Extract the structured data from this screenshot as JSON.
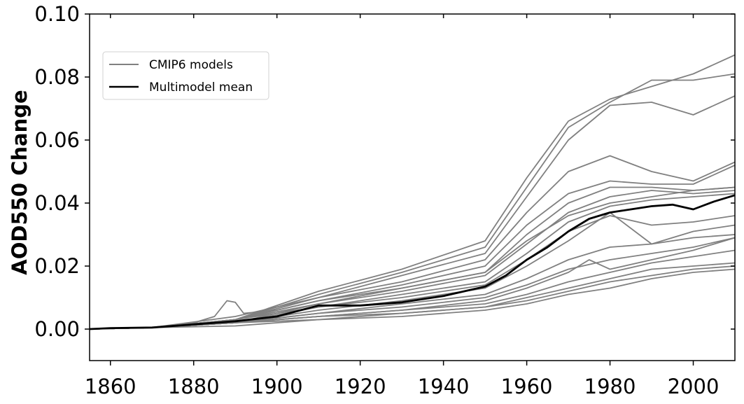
{
  "chart_data": {
    "type": "line",
    "title": "",
    "xlabel": "",
    "ylabel": "AOD550 Change",
    "xlim": [
      1855,
      2010
    ],
    "ylim": [
      -0.01,
      0.1
    ],
    "xticks": [
      1860,
      1880,
      1900,
      1920,
      1940,
      1960,
      1980,
      2000
    ],
    "xtick_labels": [
      "1860",
      "1880",
      "1900",
      "1920",
      "1940",
      "1960",
      "1980",
      "2000"
    ],
    "yticks": [
      0.0,
      0.02,
      0.04,
      0.06,
      0.08,
      0.1
    ],
    "ytick_labels": [
      "0.00",
      "0.02",
      "0.04",
      "0.06",
      "0.08",
      "0.10"
    ],
    "grid": false,
    "legend": {
      "location": "upper-left",
      "entries": [
        {
          "label": "CMIP6 models",
          "color": "#808080"
        },
        {
          "label": "Multimodel mean",
          "color": "#000000"
        }
      ]
    },
    "series": [
      {
        "group": "CMIP6 models",
        "color": "#808080",
        "x": [
          1855,
          1870,
          1890,
          1910,
          1930,
          1950,
          1960,
          1970,
          1980,
          1990,
          2000,
          2010
        ],
        "y": [
          0,
          0.0005,
          0.003,
          0.012,
          0.019,
          0.028,
          0.048,
          0.066,
          0.073,
          0.077,
          0.081,
          0.087
        ]
      },
      {
        "group": "CMIP6 models",
        "color": "#808080",
        "x": [
          1855,
          1870,
          1890,
          1910,
          1930,
          1950,
          1960,
          1970,
          1980,
          1990,
          2000,
          2010
        ],
        "y": [
          0,
          0.0005,
          0.003,
          0.011,
          0.018,
          0.026,
          0.045,
          0.064,
          0.072,
          0.079,
          0.079,
          0.081
        ]
      },
      {
        "group": "CMIP6 models",
        "color": "#808080",
        "x": [
          1855,
          1870,
          1890,
          1910,
          1930,
          1950,
          1960,
          1970,
          1980,
          1990,
          2000,
          2010
        ],
        "y": [
          0,
          0.0005,
          0.004,
          0.01,
          0.017,
          0.024,
          0.042,
          0.06,
          0.071,
          0.072,
          0.068,
          0.074
        ]
      },
      {
        "group": "CMIP6 models",
        "color": "#808080",
        "x": [
          1855,
          1870,
          1890,
          1910,
          1930,
          1950,
          1960,
          1970,
          1980,
          1990,
          2000,
          2010
        ],
        "y": [
          0,
          0.0005,
          0.003,
          0.01,
          0.015,
          0.022,
          0.037,
          0.05,
          0.055,
          0.05,
          0.047,
          0.053
        ]
      },
      {
        "group": "CMIP6 models",
        "color": "#808080",
        "x": [
          1855,
          1870,
          1890,
          1910,
          1930,
          1950,
          1960,
          1970,
          1980,
          1990,
          2000,
          2010
        ],
        "y": [
          0,
          0.0005,
          0.003,
          0.009,
          0.014,
          0.02,
          0.033,
          0.043,
          0.047,
          0.046,
          0.046,
          0.052
        ]
      },
      {
        "group": "CMIP6 models",
        "color": "#808080",
        "x": [
          1855,
          1870,
          1890,
          1910,
          1930,
          1950,
          1960,
          1970,
          1980,
          1990,
          2000,
          2010
        ],
        "y": [
          0,
          0.0005,
          0.003,
          0.008,
          0.013,
          0.018,
          0.03,
          0.04,
          0.045,
          0.045,
          0.044,
          0.045
        ]
      },
      {
        "group": "CMIP6 models",
        "color": "#808080",
        "x": [
          1855,
          1870,
          1890,
          1910,
          1930,
          1950,
          1960,
          1970,
          1980,
          1990,
          2000,
          2010
        ],
        "y": [
          0,
          0.0005,
          0.002,
          0.008,
          0.012,
          0.017,
          0.027,
          0.037,
          0.042,
          0.044,
          0.043,
          0.044
        ]
      },
      {
        "group": "CMIP6 models",
        "color": "#808080",
        "x": [
          1855,
          1870,
          1890,
          1910,
          1930,
          1950,
          1960,
          1970,
          1980,
          1990,
          2000,
          2010
        ],
        "y": [
          0,
          0.0005,
          0.003,
          0.007,
          0.011,
          0.015,
          0.024,
          0.034,
          0.039,
          0.041,
          0.042,
          0.043
        ]
      },
      {
        "group": "CMIP6 models",
        "color": "#808080",
        "x": [
          1855,
          1870,
          1890,
          1910,
          1930,
          1950,
          1960,
          1970,
          1980,
          1990,
          2000,
          2010
        ],
        "y": [
          0,
          0.0005,
          0.002,
          0.007,
          0.01,
          0.014,
          0.022,
          0.031,
          0.036,
          0.033,
          0.034,
          0.036
        ]
      },
      {
        "group": "CMIP6 models",
        "color": "#808080",
        "x": [
          1855,
          1870,
          1890,
          1910,
          1930,
          1950,
          1960,
          1970,
          1980,
          1990,
          2000,
          2010
        ],
        "y": [
          0,
          0.0005,
          0.002,
          0.006,
          0.009,
          0.013,
          0.02,
          0.028,
          0.037,
          0.027,
          0.031,
          0.033
        ]
      },
      {
        "group": "CMIP6 models",
        "color": "#808080",
        "x": [
          1855,
          1870,
          1890,
          1910,
          1930,
          1950,
          1960,
          1970,
          1980,
          1990,
          2000,
          2010
        ],
        "y": [
          0,
          0.0005,
          0.002,
          0.005,
          0.008,
          0.011,
          0.016,
          0.022,
          0.026,
          0.027,
          0.029,
          0.03
        ]
      },
      {
        "group": "CMIP6 models",
        "color": "#808080",
        "x": [
          1855,
          1870,
          1890,
          1910,
          1930,
          1950,
          1960,
          1970,
          1980,
          1990,
          2000,
          2010
        ],
        "y": [
          0,
          0.0005,
          0.002,
          0.005,
          0.007,
          0.01,
          0.014,
          0.019,
          0.022,
          0.024,
          0.026,
          0.029
        ]
      },
      {
        "group": "CMIP6 models",
        "color": "#808080",
        "x": [
          1855,
          1870,
          1890,
          1910,
          1930,
          1950,
          1960,
          1970,
          1980,
          1990,
          2000,
          2010
        ],
        "y": [
          0,
          0.0005,
          0.002,
          0.004,
          0.006,
          0.008,
          0.011,
          0.015,
          0.018,
          0.021,
          0.023,
          0.025
        ]
      },
      {
        "group": "CMIP6 models",
        "color": "#808080",
        "x": [
          1855,
          1870,
          1890,
          1910,
          1930,
          1950,
          1960,
          1970,
          1980,
          1990,
          2000,
          2010
        ],
        "y": [
          0,
          0.0005,
          0.002,
          0.003,
          0.005,
          0.007,
          0.009,
          0.012,
          0.015,
          0.017,
          0.019,
          0.02
        ]
      },
      {
        "group": "CMIP6 models",
        "color": "#808080",
        "x": [
          1855,
          1870,
          1890,
          1910,
          1930,
          1950,
          1960,
          1970,
          1980,
          1990,
          2000,
          2010
        ],
        "y": [
          0,
          0.0005,
          0.001,
          0.003,
          0.004,
          0.006,
          0.008,
          0.011,
          0.013,
          0.016,
          0.018,
          0.019
        ]
      },
      {
        "group": "CMIP6 models",
        "color": "#808080",
        "x": [
          1855,
          1870,
          1890,
          1910,
          1930,
          1950,
          1960,
          1970,
          1980,
          1990,
          2000,
          2010
        ],
        "y": [
          0,
          0.0005,
          0.002,
          0.004,
          0.005,
          0.007,
          0.01,
          0.013,
          0.016,
          0.019,
          0.02,
          0.021
        ]
      },
      {
        "group": "CMIP6 models",
        "color": "#808080",
        "x": [
          1855,
          1870,
          1880,
          1885,
          1888,
          1890,
          1892,
          1900,
          1910,
          1930,
          1950,
          1960,
          1970,
          1980,
          1990,
          2000,
          2010
        ],
        "y": [
          0,
          0.0005,
          0.002,
          0.004,
          0.009,
          0.0085,
          0.005,
          0.006,
          0.009,
          0.013,
          0.018,
          0.028,
          0.036,
          0.04,
          0.042,
          0.044,
          0.045
        ]
      },
      {
        "group": "CMIP6 models",
        "color": "#808080",
        "x": [
          1855,
          1870,
          1890,
          1910,
          1930,
          1950,
          1960,
          1970,
          1975,
          1980,
          1990,
          2000,
          2010
        ],
        "y": [
          0,
          0.0005,
          0.002,
          0.004,
          0.006,
          0.009,
          0.013,
          0.018,
          0.022,
          0.019,
          0.022,
          0.025,
          0.029
        ]
      },
      {
        "name": "Multimodel mean",
        "group": "Multimodel mean",
        "color": "#000000",
        "x": [
          1855,
          1860,
          1870,
          1880,
          1890,
          1900,
          1910,
          1920,
          1930,
          1940,
          1945,
          1950,
          1955,
          1960,
          1965,
          1970,
          1975,
          1980,
          1985,
          1990,
          1995,
          2000,
          2005,
          2010
        ],
        "y": [
          0,
          0.0003,
          0.0005,
          0.0015,
          0.0025,
          0.004,
          0.0075,
          0.0075,
          0.0085,
          0.0105,
          0.012,
          0.0135,
          0.017,
          0.022,
          0.026,
          0.031,
          0.035,
          0.037,
          0.038,
          0.039,
          0.0395,
          0.038,
          0.0405,
          0.0425
        ]
      }
    ]
  }
}
